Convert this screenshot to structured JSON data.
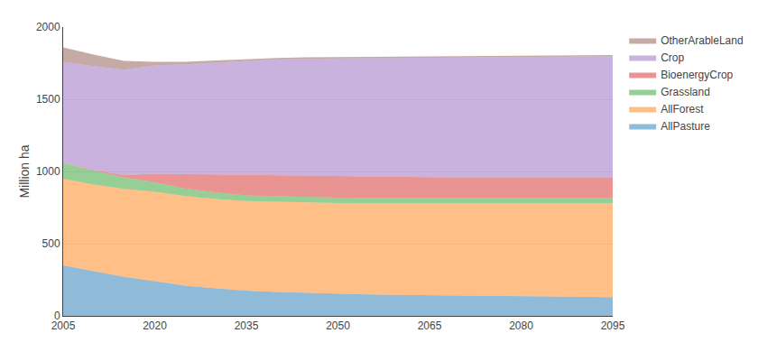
{
  "chart_data": {
    "type": "area",
    "stacked": true,
    "ylabel": "Million ha",
    "x": [
      2005,
      2010,
      2015,
      2020,
      2025,
      2030,
      2035,
      2040,
      2045,
      2050,
      2055,
      2060,
      2065,
      2070,
      2075,
      2080,
      2085,
      2090,
      2095
    ],
    "series": [
      {
        "name": "AllPasture",
        "values": [
          350,
          310,
          270,
          240,
          210,
          190,
          175,
          165,
          158,
          152,
          148,
          145,
          142,
          140,
          138,
          136,
          134,
          132,
          130
        ]
      },
      {
        "name": "AllForest",
        "values": [
          600,
          600,
          610,
          620,
          620,
          620,
          620,
          625,
          628,
          630,
          632,
          635,
          638,
          640,
          642,
          644,
          646,
          648,
          650
        ]
      },
      {
        "name": "Grassland",
        "values": [
          110,
          95,
          80,
          65,
          52,
          45,
          40,
          38,
          37,
          36,
          36,
          36,
          36,
          36,
          36,
          36,
          36,
          36,
          36
        ]
      },
      {
        "name": "BioenergyCrop",
        "values": [
          0,
          5,
          15,
          60,
          100,
          125,
          140,
          148,
          150,
          150,
          148,
          145,
          143,
          143,
          143,
          143,
          143,
          143,
          143
        ]
      },
      {
        "name": "Crop",
        "values": [
          700,
          720,
          730,
          750,
          760,
          775,
          790,
          800,
          808,
          815,
          820,
          825,
          828,
          830,
          832,
          834,
          836,
          838,
          840
        ]
      },
      {
        "name": "OtherArableLand",
        "values": [
          100,
          80,
          60,
          25,
          18,
          15,
          12,
          10,
          9,
          8,
          8,
          8,
          8,
          8,
          8,
          8,
          8,
          8,
          8
        ]
      }
    ],
    "xlim": [
      2005,
      2095
    ],
    "xticks": [
      2005,
      2020,
      2035,
      2050,
      2065,
      2080,
      2095
    ],
    "ylim": [
      0,
      2000
    ],
    "yticks": [
      0,
      500,
      1000,
      1500,
      2000
    ],
    "grid": true,
    "legend": "right"
  }
}
